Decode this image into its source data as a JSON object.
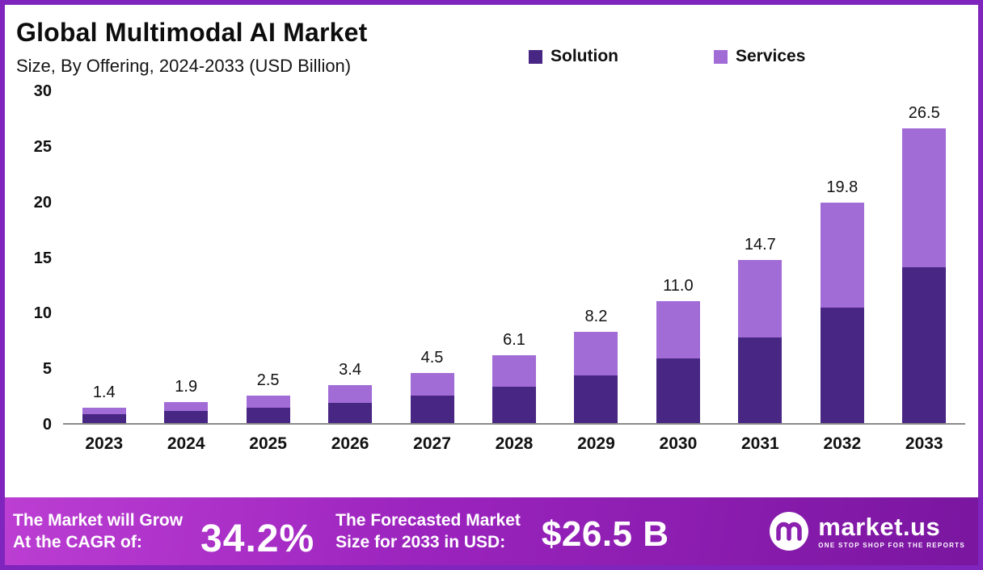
{
  "title": "Global Multimodal AI Market",
  "subtitle": "Size, By Offering, 2024-2033 (USD Billion)",
  "legend": [
    {
      "label": "Solution"
    },
    {
      "label": "Services"
    }
  ],
  "chart_data": {
    "type": "bar",
    "stacked": true,
    "title": "Global Multimodal AI Market Size, By Offering, 2024-2033 (USD Billion)",
    "categories": [
      "2023",
      "2024",
      "2025",
      "2026",
      "2027",
      "2028",
      "2029",
      "2030",
      "2031",
      "2032",
      "2033"
    ],
    "series": [
      {
        "name": "Solution",
        "color": "#482683",
        "values": [
          0.8,
          1.1,
          1.4,
          1.8,
          2.5,
          3.3,
          4.3,
          5.8,
          7.7,
          10.4,
          14.0
        ]
      },
      {
        "name": "Services",
        "color": "#a26cd6",
        "values": [
          0.6,
          0.8,
          1.1,
          1.6,
          2.0,
          2.8,
          3.9,
          5.2,
          7.0,
          9.4,
          12.5
        ]
      }
    ],
    "totals": [
      1.4,
      1.9,
      2.5,
      3.4,
      4.5,
      6.1,
      8.2,
      11.0,
      14.7,
      19.8,
      26.5
    ],
    "total_labels": [
      "1.4",
      "1.9",
      "2.5",
      "3.4",
      "4.5",
      "6.1",
      "8.2",
      "11.0",
      "14.7",
      "19.8",
      "26.5"
    ],
    "xlabel": "",
    "ylabel": "",
    "ylim": [
      0,
      30
    ],
    "yticks": [
      0,
      5,
      10,
      15,
      20,
      25,
      30
    ],
    "grid": false,
    "legend_position": "top"
  },
  "banner": {
    "cagr_label_line1": "The Market will Grow",
    "cagr_label_line2": "At the CAGR of:",
    "cagr_value": "34.2%",
    "forecast_label_line1": "The Forecasted Market",
    "forecast_label_line2": "Size for 2033 in USD:",
    "forecast_value": "$26.5 B",
    "brand": "market.us",
    "brand_tagline": "ONE STOP SHOP FOR THE REPORTS"
  },
  "colors": {
    "solution": "#482683",
    "services": "#a26cd6",
    "frame_border": "#7f24bc",
    "banner_gradient_start": "#bc3ed3",
    "banner_gradient_end": "#7a16a0",
    "text": "#111111"
  }
}
